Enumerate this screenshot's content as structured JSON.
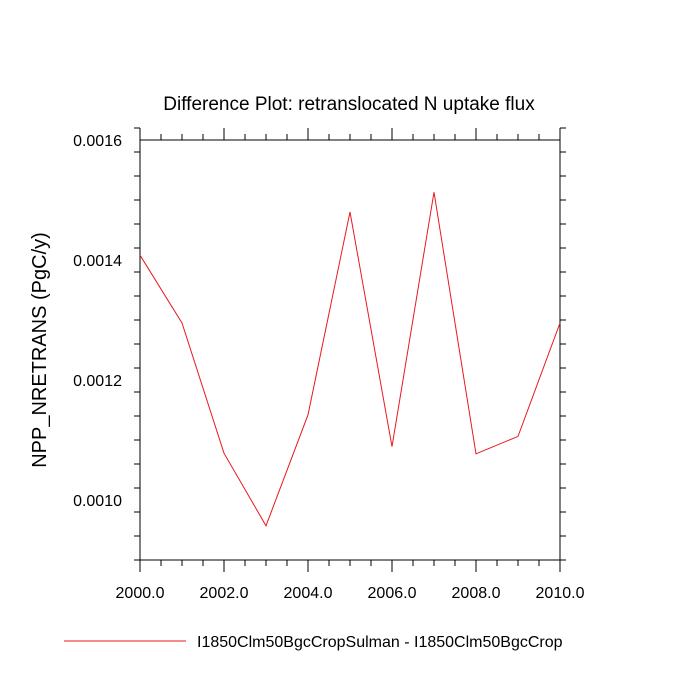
{
  "chart_data": {
    "type": "line",
    "title": "Difference Plot: retranslocated N uptake flux",
    "xlabel": "",
    "ylabel": "NPP_NRETRANS  (PgC/y)",
    "xlim": [
      2000,
      2010
    ],
    "ylim": [
      0.0009,
      0.0016
    ],
    "x_ticks": [
      2000,
      2002,
      2004,
      2006,
      2008,
      2010
    ],
    "x_tick_labels": [
      "2000.0",
      "2002.0",
      "2004.0",
      "2006.0",
      "2008.0",
      "2010.0"
    ],
    "y_ticks": [
      0.001,
      0.0012,
      0.0014,
      0.0016
    ],
    "y_tick_labels": [
      "0.0010",
      "0.0012",
      "0.0014",
      "0.0016"
    ],
    "grid": false,
    "legend_position": "bottom",
    "series": [
      {
        "name": "I1850Clm50BgcCropSulman - I1850Clm50BgcCrop",
        "color": "#e8191e",
        "x": [
          2000,
          2001,
          2002,
          2003,
          2004,
          2005,
          2006,
          2007,
          2008,
          2009,
          2010
        ],
        "values": [
          0.001408,
          0.001295,
          0.001078,
          0.000957,
          0.001142,
          0.00148,
          0.001089,
          0.001513,
          0.001077,
          0.001106,
          0.001295
        ]
      }
    ]
  }
}
